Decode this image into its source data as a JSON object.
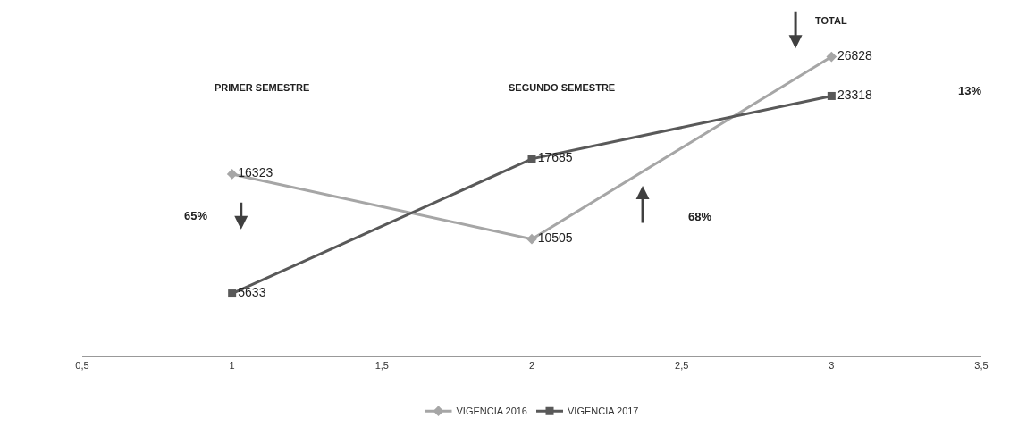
{
  "chart_data": {
    "type": "line",
    "x": [
      1,
      2,
      3
    ],
    "series": [
      {
        "name": "VIGENCIA 2016",
        "color": "#a6a6a6",
        "marker": "diamond",
        "values": [
          16323,
          10505,
          26828
        ]
      },
      {
        "name": "VIGENCIA 2017",
        "color": "#595959",
        "marker": "square",
        "values": [
          5633,
          17685,
          23318
        ]
      }
    ],
    "xlim": [
      0.5,
      3.5
    ],
    "xticks": [
      {
        "value": 0.5,
        "label": "0,5"
      },
      1,
      {
        "value": 1.5,
        "label": "1,5"
      },
      2,
      {
        "value": 2.5,
        "label": "2,5"
      },
      3,
      {
        "value": 3.5,
        "label": "3,5"
      }
    ],
    "tick_labels": "x",
    "data_labels": true,
    "legend": "bottom",
    "annotations": [
      "PRIMER SEMESTRE",
      "SEGUNDO SEMESTRE",
      "TOTAL",
      "65%",
      "68%",
      "13%"
    ]
  }
}
